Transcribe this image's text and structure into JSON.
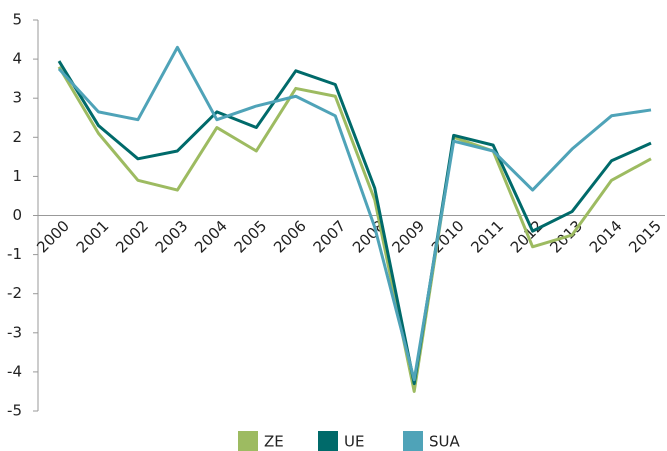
{
  "chart_data": {
    "type": "line",
    "categories": [
      "2000",
      "2001",
      "2002",
      "2003",
      "2004",
      "2005",
      "2006",
      "2007",
      "2008",
      "2009",
      "2010",
      "2011",
      "2012",
      "2013",
      "2014",
      "2015"
    ],
    "series": [
      {
        "name": "ZE",
        "color": "#9dbb61",
        "values": [
          3.8,
          2.1,
          0.9,
          0.65,
          2.25,
          1.65,
          3.25,
          3.05,
          0.4,
          -4.5,
          2.0,
          1.65,
          -0.8,
          -0.5,
          0.9,
          1.45
        ]
      },
      {
        "name": "UE",
        "color": "#006a6a",
        "values": [
          3.95,
          2.3,
          1.45,
          1.65,
          2.65,
          2.25,
          3.7,
          3.35,
          0.7,
          -4.3,
          2.05,
          1.8,
          -0.4,
          0.1,
          1.4,
          1.85
        ]
      },
      {
        "name": "SUA",
        "color": "#4fa3b8",
        "values": [
          3.75,
          2.65,
          2.45,
          4.3,
          2.45,
          2.8,
          3.05,
          2.55,
          -0.3,
          -4.2,
          1.9,
          1.65,
          0.65,
          1.7,
          2.55,
          2.7
        ]
      }
    ],
    "ylim": [
      -5,
      5
    ],
    "yticks": [
      -5,
      -4,
      -3,
      -2,
      -1,
      0,
      1,
      2,
      3,
      4,
      5
    ],
    "grid": false,
    "legend": "bottom"
  }
}
